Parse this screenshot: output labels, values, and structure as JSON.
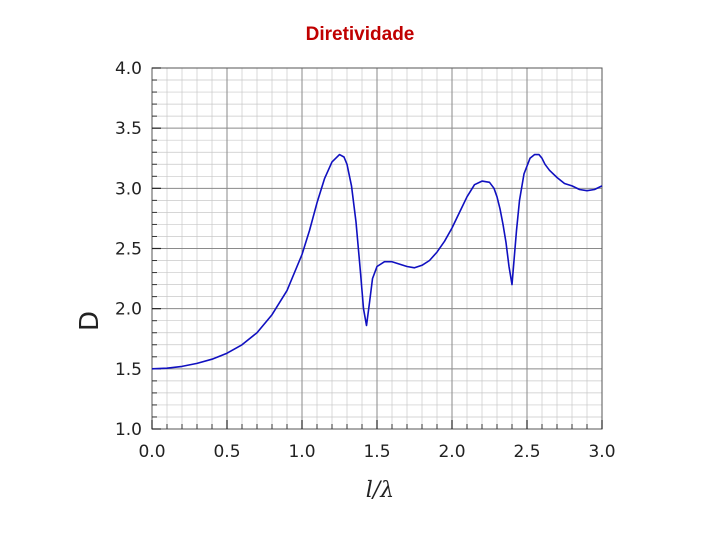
{
  "slide": {
    "title": "Diretividade"
  },
  "chart_data": {
    "type": "line",
    "xlabel": "l/λ",
    "ylabel": "D",
    "xlim": [
      0,
      3
    ],
    "ylim": [
      1,
      4
    ],
    "x_ticks": [
      "0.0",
      "0.5",
      "1.0",
      "1.5",
      "2.0",
      "2.5",
      "3.0"
    ],
    "y_ticks": [
      "1.0",
      "1.5",
      "2.0",
      "2.5",
      "3.0",
      "3.5",
      "4.0"
    ],
    "grid": true,
    "line_color": "#1010c0",
    "series": [
      {
        "x": [
          0.0,
          0.1,
          0.2,
          0.3,
          0.4,
          0.5,
          0.6,
          0.7,
          0.8,
          0.9,
          1.0,
          1.05,
          1.1,
          1.15,
          1.2,
          1.25,
          1.28,
          1.3,
          1.33,
          1.36,
          1.39,
          1.41,
          1.43,
          1.45,
          1.47,
          1.5,
          1.55,
          1.6,
          1.65,
          1.7,
          1.75,
          1.8,
          1.85,
          1.9,
          1.95,
          2.0,
          2.05,
          2.1,
          2.15,
          2.2,
          2.25,
          2.28,
          2.3,
          2.32,
          2.34,
          2.36,
          2.38,
          2.4,
          2.41,
          2.43,
          2.45,
          2.48,
          2.52,
          2.55,
          2.58,
          2.6,
          2.62,
          2.65,
          2.7,
          2.75,
          2.8,
          2.85,
          2.9,
          2.95,
          3.0
        ],
        "y": [
          1.5,
          1.505,
          1.52,
          1.545,
          1.58,
          1.63,
          1.7,
          1.8,
          1.95,
          2.15,
          2.45,
          2.65,
          2.88,
          3.08,
          3.22,
          3.28,
          3.26,
          3.2,
          3.02,
          2.72,
          2.3,
          2.0,
          1.86,
          2.05,
          2.25,
          2.35,
          2.39,
          2.39,
          2.37,
          2.35,
          2.34,
          2.36,
          2.4,
          2.47,
          2.56,
          2.67,
          2.8,
          2.93,
          3.03,
          3.06,
          3.05,
          3.0,
          2.93,
          2.83,
          2.7,
          2.55,
          2.35,
          2.2,
          2.35,
          2.65,
          2.9,
          3.12,
          3.25,
          3.28,
          3.28,
          3.25,
          3.2,
          3.15,
          3.09,
          3.04,
          3.02,
          2.99,
          2.98,
          2.99,
          3.02
        ]
      }
    ]
  }
}
